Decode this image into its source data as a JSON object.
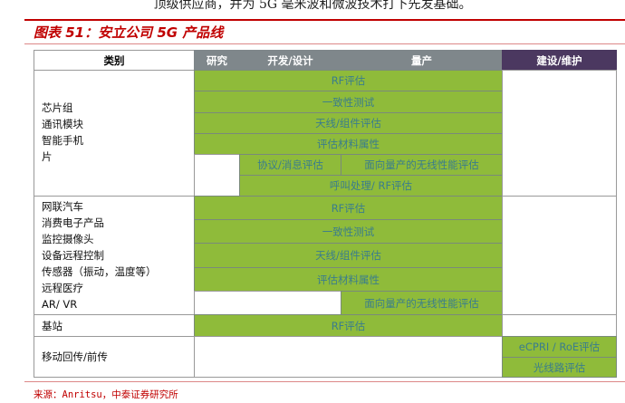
{
  "intro_text": "顶级供应商，并为 5G 毫米波和微波技术打下先发基础。",
  "figure_title": "图表 51：安立公司 5G 产品线",
  "header": {
    "category": "类别",
    "research": "研究",
    "dev": "开发/设计",
    "mass": "量产",
    "build": "建设/维护"
  },
  "groups": [
    {
      "categories": "芯片组\n通讯模块\n智能手机\n片",
      "rows": [
        "RF评估",
        "一致性测试",
        "天线/组件评估",
        "评估材料属性",
        "协议/消息评估",
        "面向量产的无线性能评估",
        "呼叫处理/ RF评估"
      ]
    },
    {
      "categories": "网联汽车\n消费电子产品\n监控摄像头\n设备远程控制\n传感器（振动，温度等）\n远程医疗\nAR/ VR",
      "rows": [
        "RF评估",
        "一致性测试",
        "天线/组件评估",
        "评估材料属性",
        "面向量产的无线性能评估"
      ]
    },
    {
      "categories": "基站",
      "rows": [
        "RF评估"
      ]
    },
    {
      "categories": "移动回传/前传",
      "rows": [
        "eCPRI / RoE评估",
        "光线路评估"
      ]
    }
  ],
  "source": "来源：Anritsu，中泰证券研究所",
  "colors": {
    "green": "#8fbb3a",
    "header_gray": "#7f878b",
    "header_purple": "#4b3860",
    "accent_red": "#c00000"
  }
}
